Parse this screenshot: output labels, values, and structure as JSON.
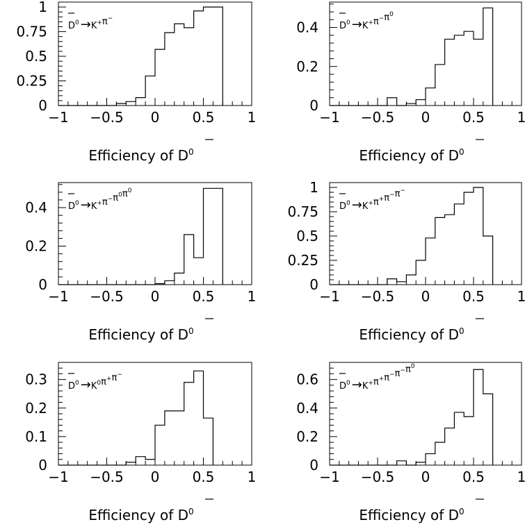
{
  "figure": {
    "x_axis_title_text": "Efficiency of D",
    "x_axis_title_sup": "0",
    "x_axis_title_bar": "—"
  },
  "chart_data": [
    {
      "type": "bar",
      "decay": {
        "parent": "D",
        "sup": "0",
        "arrow": "→",
        "products": [
          [
            "K",
            "+"
          ],
          [
            "π",
            "−"
          ]
        ]
      },
      "xlim": [
        -1,
        1
      ],
      "ylim": [
        0,
        1.05
      ],
      "x_ticks": [
        -1,
        -0.5,
        0,
        0.5,
        1
      ],
      "x_tick_labels": [
        "−1",
        "−0.5",
        "0",
        "0.5",
        "1"
      ],
      "y_ticks": [
        0,
        0.25,
        0.5,
        0.75,
        1
      ],
      "y_tick_labels": [
        "0",
        "0.25",
        "0.5",
        "0.75",
        "1"
      ],
      "bin_edges": [
        -1,
        -0.9,
        -0.8,
        -0.7,
        -0.6,
        -0.5,
        -0.4,
        -0.3,
        -0.2,
        -0.1,
        0,
        0.1,
        0.2,
        0.3,
        0.4,
        0.5,
        0.6,
        0.7
      ],
      "values": [
        0,
        0,
        0,
        0,
        0,
        0,
        0.02,
        0.04,
        0.08,
        0.3,
        0.57,
        0.74,
        0.83,
        0.79,
        0.96,
        1.0,
        1.0
      ]
    },
    {
      "type": "bar",
      "decay": {
        "parent": "D",
        "sup": "0",
        "arrow": "→",
        "products": [
          [
            "K",
            "+"
          ],
          [
            "π",
            "−"
          ],
          [
            "π",
            "0"
          ]
        ]
      },
      "xlim": [
        -1,
        1
      ],
      "ylim": [
        0,
        0.53
      ],
      "x_ticks": [
        -1,
        -0.5,
        0,
        0.5,
        1
      ],
      "x_tick_labels": [
        "−1",
        "−0.5",
        "0",
        "0.5",
        "1"
      ],
      "y_ticks": [
        0,
        0.2,
        0.4
      ],
      "y_tick_labels": [
        "0",
        "0.2",
        "0.4"
      ],
      "bin_edges": [
        -1,
        -0.9,
        -0.8,
        -0.7,
        -0.6,
        -0.5,
        -0.4,
        -0.3,
        -0.2,
        -0.1,
        0,
        0.1,
        0.2,
        0.3,
        0.4,
        0.5,
        0.6,
        0.7
      ],
      "values": [
        0,
        0,
        0,
        0,
        0,
        0,
        0.04,
        0,
        0.01,
        0.03,
        0.09,
        0.21,
        0.34,
        0.36,
        0.38,
        0.34,
        0.5
      ]
    },
    {
      "type": "bar",
      "decay": {
        "parent": "D",
        "sup": "0",
        "arrow": "→",
        "products": [
          [
            "K",
            "+"
          ],
          [
            "π",
            "−"
          ],
          [
            "π",
            "0"
          ],
          [
            "π",
            "0"
          ]
        ]
      },
      "xlim": [
        -1,
        1
      ],
      "ylim": [
        0,
        0.53
      ],
      "x_ticks": [
        -1,
        -0.5,
        0,
        0.5,
        1
      ],
      "x_tick_labels": [
        "−1",
        "−0.5",
        "0",
        "0.5",
        "1"
      ],
      "y_ticks": [
        0,
        0.2,
        0.4
      ],
      "y_tick_labels": [
        "0",
        "0.2",
        "0.4"
      ],
      "bin_edges": [
        -1,
        -0.9,
        -0.8,
        -0.7,
        -0.6,
        -0.5,
        -0.4,
        -0.3,
        -0.2,
        -0.1,
        0,
        0.1,
        0.2,
        0.3,
        0.4,
        0.5,
        0.6,
        0.7
      ],
      "values": [
        0,
        0,
        0,
        0,
        0,
        0,
        0,
        0,
        0,
        0,
        0.005,
        0.02,
        0.06,
        0.26,
        0.14,
        0.5,
        0.5
      ]
    },
    {
      "type": "bar",
      "decay": {
        "parent": "D",
        "sup": "0",
        "arrow": "→",
        "products": [
          [
            "K",
            "+"
          ],
          [
            "π",
            "+"
          ],
          [
            "π",
            "−"
          ],
          [
            "π",
            "−"
          ]
        ]
      },
      "xlim": [
        -1,
        1
      ],
      "ylim": [
        0,
        1.05
      ],
      "x_ticks": [
        -1,
        -0.5,
        0,
        0.5,
        1
      ],
      "x_tick_labels": [
        "−1",
        "−0.5",
        "0",
        "0.5",
        "1"
      ],
      "y_ticks": [
        0,
        0.25,
        0.5,
        0.75,
        1
      ],
      "y_tick_labels": [
        "0",
        "0.25",
        "0.5",
        "0.75",
        "1"
      ],
      "bin_edges": [
        -1,
        -0.9,
        -0.8,
        -0.7,
        -0.6,
        -0.5,
        -0.4,
        -0.3,
        -0.2,
        -0.1,
        0,
        0.1,
        0.2,
        0.3,
        0.4,
        0.5,
        0.6,
        0.7
      ],
      "values": [
        0,
        0,
        0,
        0,
        0,
        0,
        0.06,
        0.03,
        0.1,
        0.25,
        0.48,
        0.69,
        0.72,
        0.83,
        0.95,
        1.0,
        0.5
      ]
    },
    {
      "type": "bar",
      "decay": {
        "parent": "D",
        "sup": "0",
        "arrow": "→",
        "products": [
          [
            "K",
            "0"
          ],
          [
            "π",
            "+"
          ],
          [
            "π",
            "−"
          ]
        ]
      },
      "xlim": [
        -1,
        1
      ],
      "ylim": [
        0,
        0.36
      ],
      "x_ticks": [
        -1,
        -0.5,
        0,
        0.5,
        1
      ],
      "x_tick_labels": [
        "−1",
        "−0.5",
        "0",
        "0.5",
        "1"
      ],
      "y_ticks": [
        0,
        0.1,
        0.2,
        0.3
      ],
      "y_tick_labels": [
        "0",
        "0.1",
        "0.2",
        "0.3"
      ],
      "bin_edges": [
        -1,
        -0.9,
        -0.8,
        -0.7,
        -0.6,
        -0.5,
        -0.4,
        -0.3,
        -0.2,
        -0.1,
        0,
        0.1,
        0.2,
        0.3,
        0.4,
        0.5,
        0.6
      ],
      "values": [
        0,
        0,
        0,
        0,
        0,
        0,
        0,
        0.01,
        0.03,
        0.02,
        0.14,
        0.19,
        0.19,
        0.29,
        0.33,
        0.165
      ]
    },
    {
      "type": "bar",
      "decay": {
        "parent": "D",
        "sup": "0",
        "arrow": "→",
        "products": [
          [
            "K",
            "+"
          ],
          [
            "π",
            "+"
          ],
          [
            "π",
            "−"
          ],
          [
            "π",
            "−"
          ],
          [
            "π",
            "0"
          ]
        ]
      },
      "xlim": [
        -1,
        1
      ],
      "ylim": [
        0,
        0.72
      ],
      "x_ticks": [
        -1,
        -0.5,
        0,
        0.5,
        1
      ],
      "x_tick_labels": [
        "−1",
        "−0.5",
        "0",
        "0.5",
        "1"
      ],
      "y_ticks": [
        0,
        0.2,
        0.4,
        0.6
      ],
      "y_tick_labels": [
        "0",
        "0.2",
        "0.4",
        "0.6"
      ],
      "bin_edges": [
        -1,
        -0.9,
        -0.8,
        -0.7,
        -0.6,
        -0.5,
        -0.4,
        -0.3,
        -0.2,
        -0.1,
        0,
        0.1,
        0.2,
        0.3,
        0.4,
        0.5,
        0.6,
        0.7
      ],
      "values": [
        0,
        0,
        0,
        0,
        0,
        0,
        0,
        0.03,
        0,
        0.02,
        0.08,
        0.16,
        0.26,
        0.37,
        0.34,
        0.67,
        0.5
      ]
    }
  ]
}
